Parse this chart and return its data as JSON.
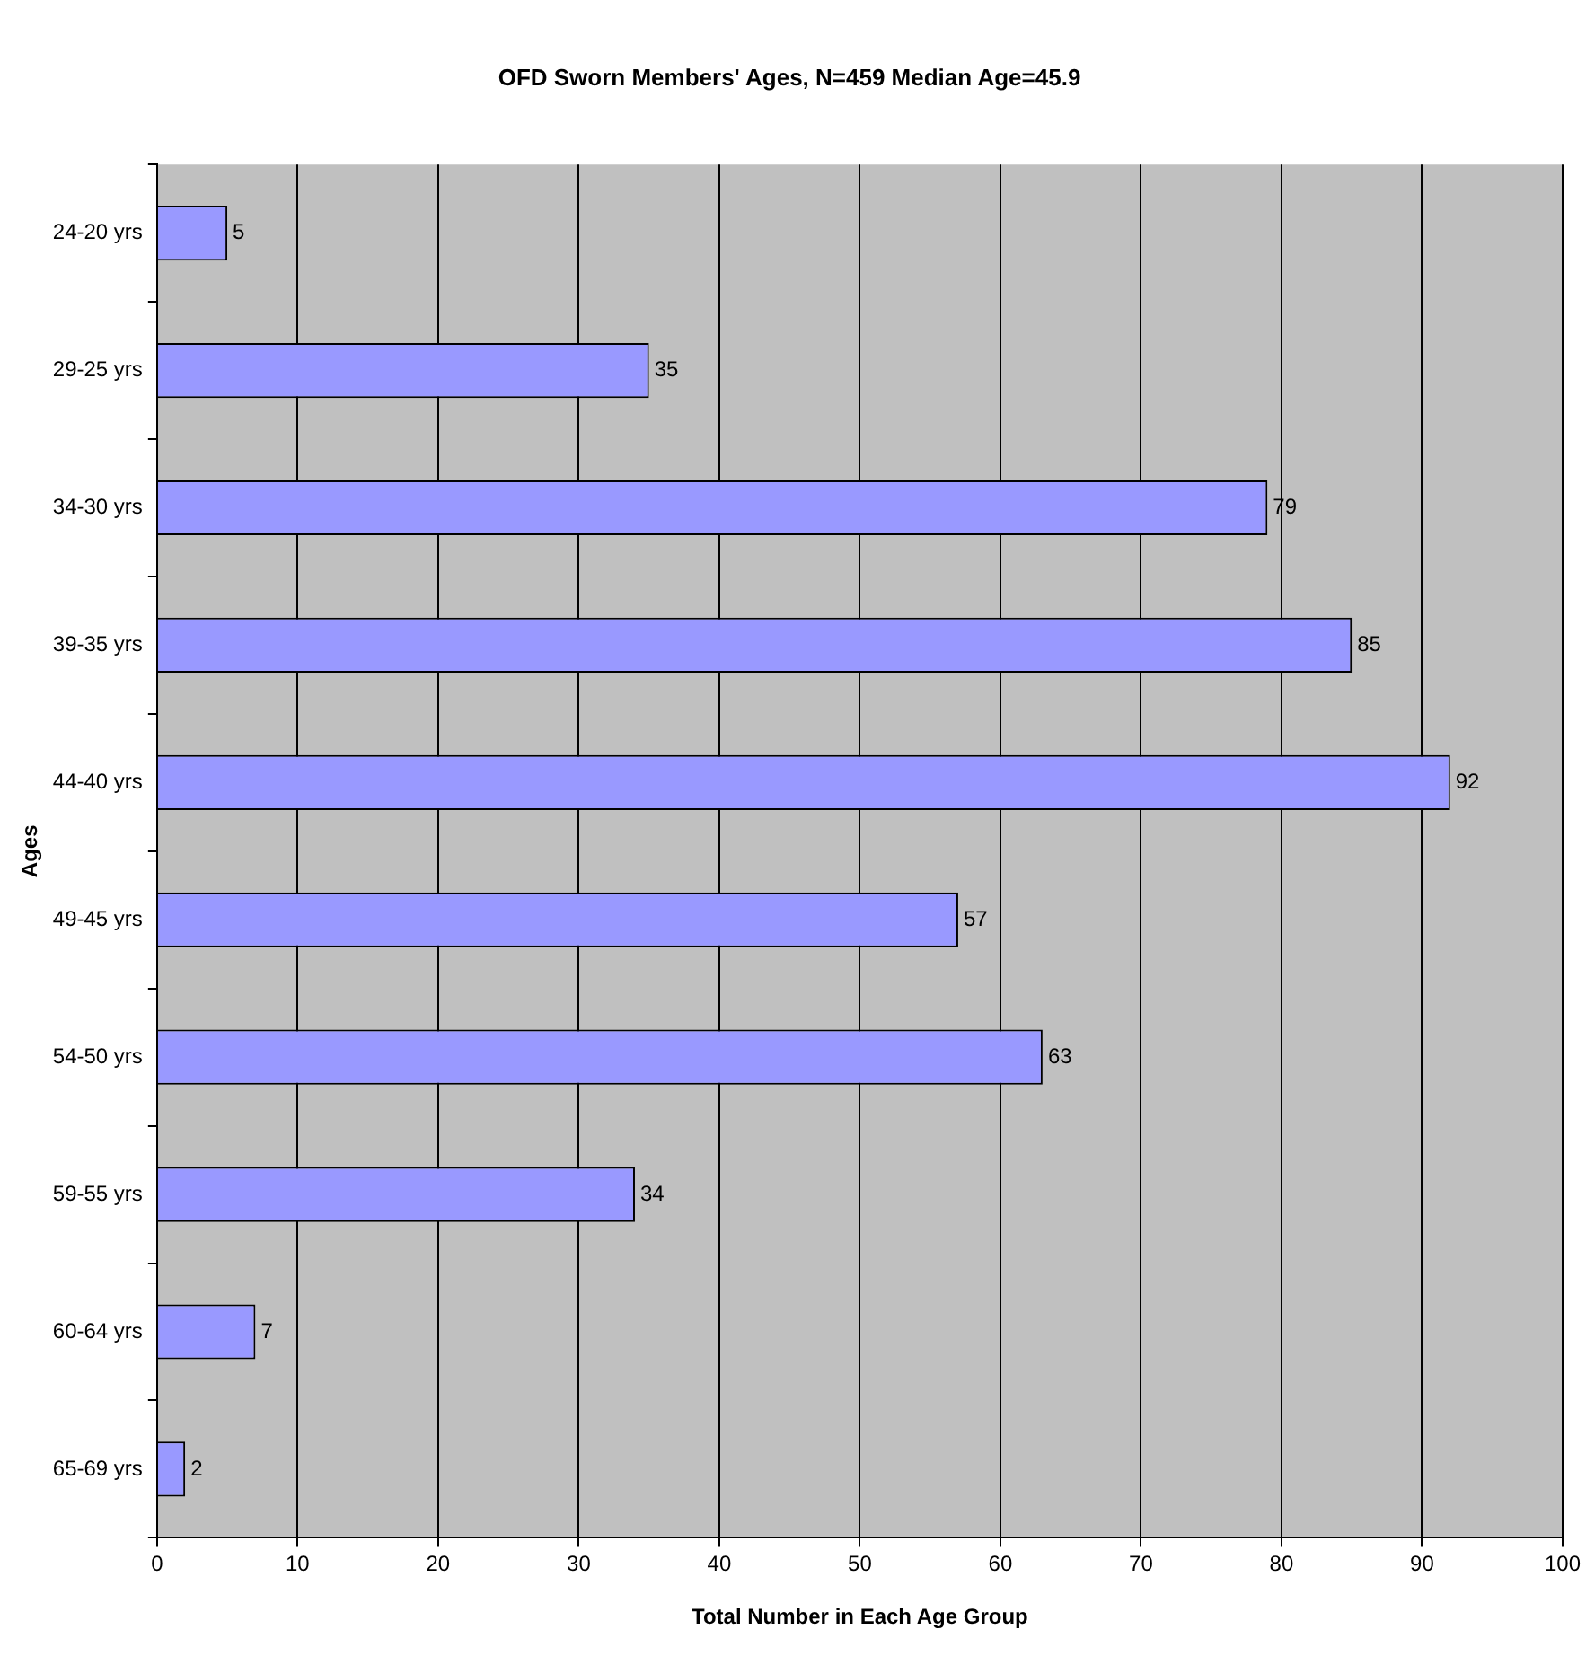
{
  "chart_data": {
    "type": "bar",
    "orientation": "horizontal",
    "title": "OFD Sworn Members' Ages, N=459 Median Age=45.9",
    "xlabel": "Total Number in Each Age Group",
    "ylabel": "Ages",
    "categories": [
      "24-20 yrs",
      "29-25 yrs",
      "34-30 yrs",
      "39-35 yrs",
      "44-40 yrs",
      "49-45 yrs",
      "54-50 yrs",
      "59-55 yrs",
      "60-64 yrs",
      "65-69 yrs"
    ],
    "values": [
      5,
      35,
      79,
      85,
      92,
      57,
      63,
      34,
      7,
      2
    ],
    "color": "#9999ff",
    "xlim": [
      0,
      100
    ],
    "xticks": [
      0,
      10,
      20,
      30,
      40,
      50,
      60,
      70,
      80,
      90,
      100
    ],
    "grid": "x",
    "legend": false,
    "data_labels": true
  }
}
